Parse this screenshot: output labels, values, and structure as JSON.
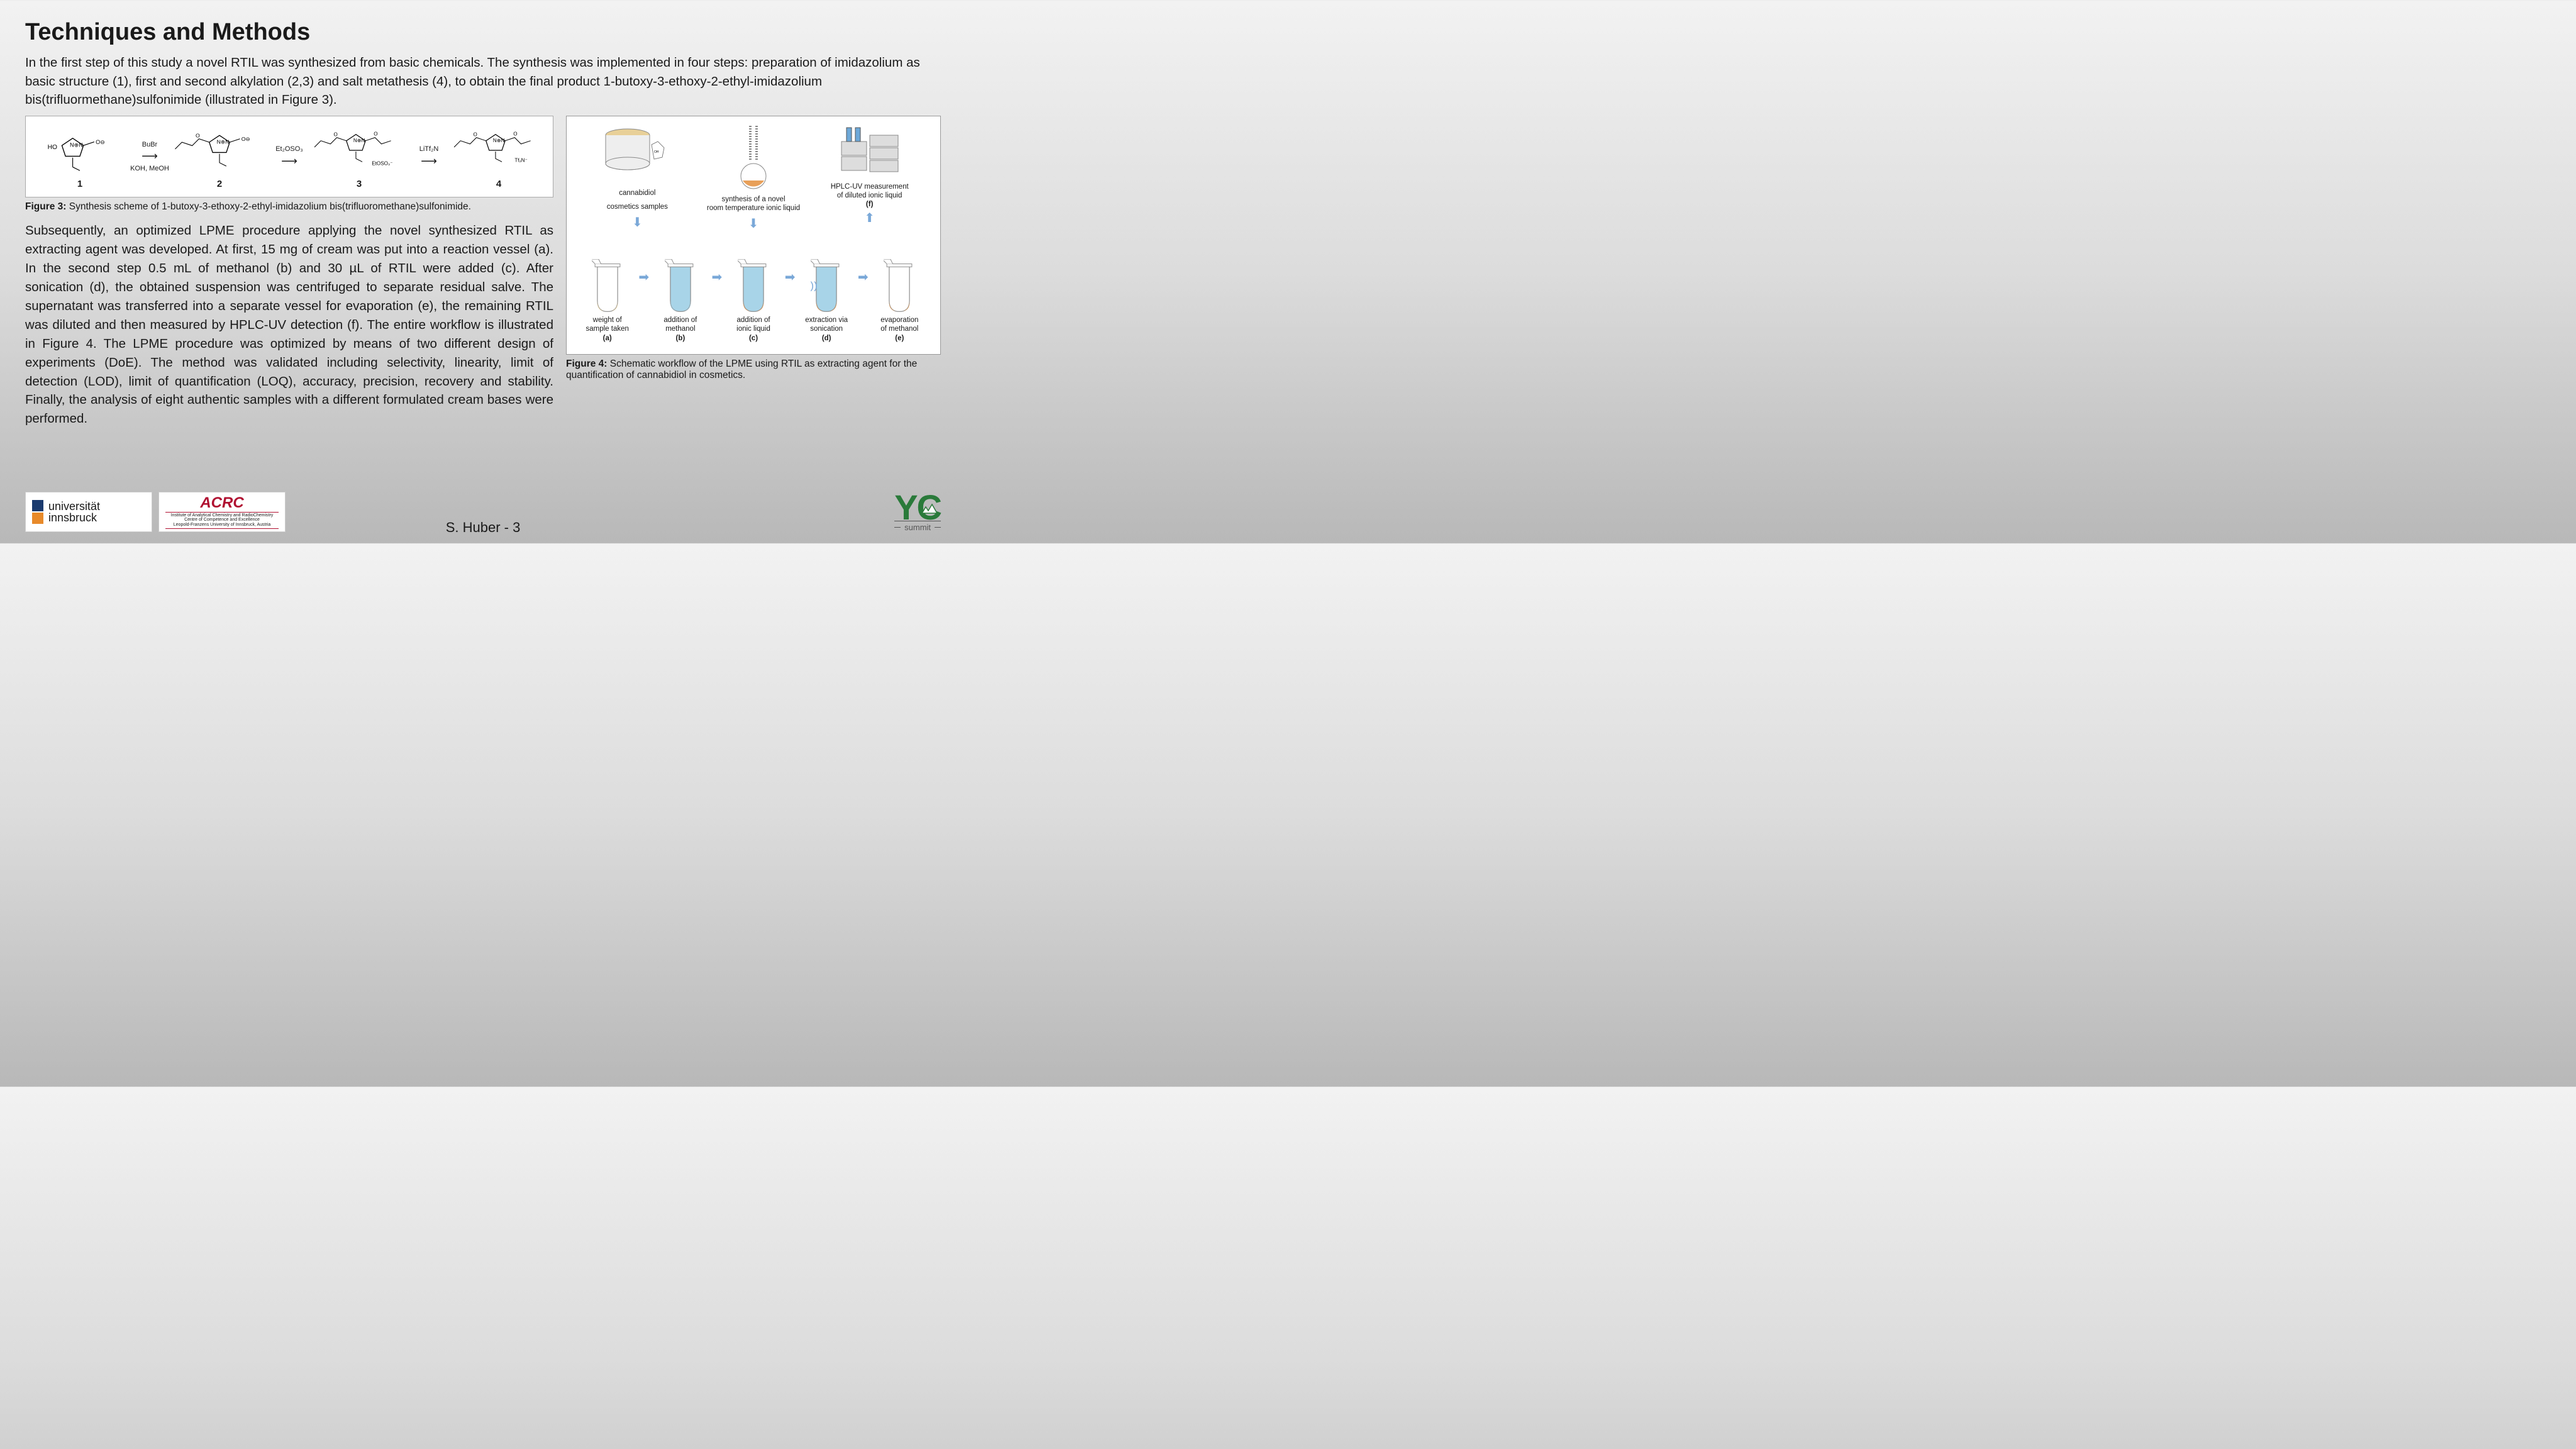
{
  "title": "Techniques and Methods",
  "intro": "In the first step of this study a novel RTIL was synthesized from basic chemicals. The synthesis was implemented in four steps: preparation of imidazolium as basic structure (1), first and second alkylation (2,3) and salt metathesis (4), to obtain the final product 1-butoxy-3-ethoxy-2-ethyl-imidazolium bis(trifluormethane)sulfonimide (illustrated in Figure 3).",
  "scheme": {
    "mol_labels": [
      "1",
      "2",
      "3",
      "4"
    ],
    "reactions": [
      {
        "top": "BuBr",
        "bottom": "KOH, MeOH"
      },
      {
        "top": "Et₂OSO₃",
        "bottom": ""
      },
      {
        "top": "LiTf₂N",
        "bottom": ""
      }
    ],
    "mol1_left": "HO",
    "mol3_anion": "EtOSO₃⁻",
    "mol4_anion": "Tf₂N⁻"
  },
  "fig3_bold": "Figure 3:",
  "fig3_text": " Synthesis scheme of 1-butoxy-3-ethoxy-2-ethyl-imidazolium bis(trifluoromethane)sulfonimide.",
  "body": "Subsequently, an optimized LPME procedure applying the novel synthesized RTIL as extracting agent was developed. At first, 15 mg of cream was put into a reaction vessel (a). In the second step 0.5 mL of methanol (b) and 30 µL of RTIL were added (c). After sonication (d), the obtained suspension was centrifuged to separate residual salve. The supernatant was transferred into a separate vessel for evaporation (e), the remaining RTIL was diluted and then measured by HPLC-UV detection (f). The entire workflow is illustrated in Figure 4. The LPME procedure was optimized by means of two different design of experiments (DoE). The method was validated including selectivity, linearity, limit of detection (LOD), limit of quantification (LOQ), accuracy, precision, recovery and stability. Finally, the analysis of eight authentic samples with a different formulated cream bases were performed.",
  "workflow": {
    "top_items": [
      {
        "label": "cannabidiol",
        "sublabel": "cosmetics samples"
      },
      {
        "label": "synthesis of a novel",
        "sublabel": "room temperature ionic liquid"
      },
      {
        "label": "HPLC-UV measurement",
        "sublabel": "of diluted ionic liquid",
        "letter": "(f)"
      }
    ],
    "tubes": [
      {
        "label": "weight of",
        "sub": "sample taken",
        "letter": "(a)",
        "fill": "#ffffff",
        "bottom": "#e8d098"
      },
      {
        "label": "addition of",
        "sub": "methanol",
        "letter": "(b)",
        "fill": "#a8d4e8",
        "bottom": "#a8d4e8"
      },
      {
        "label": "addition of",
        "sub": "ionic liquid",
        "letter": "(c)",
        "fill": "#a8d4e8",
        "bottom": "#e8a05a"
      },
      {
        "label": "extraction via",
        "sub": "sonication",
        "letter": "(d)",
        "fill": "#a8d4e8",
        "bottom": "#e8a05a"
      },
      {
        "label": "evaporation",
        "sub": "of methanol",
        "letter": "(e)",
        "fill": "#ffffff",
        "bottom": "#e8a05a"
      }
    ]
  },
  "fig4_bold": "Figure 4:",
  "fig4_text": " Schematic workflow of the LPME using RTIL as extracting agent for the quantification of cannabidiol in cosmetics.",
  "logos": {
    "uibk_line1": "universität",
    "uibk_line2": "innsbruck",
    "uibk_blue": "#1a3a6e",
    "uibk_orange": "#e88a2a",
    "acrc": "ACRC",
    "acrc_sub1": "Institute of Analytical Chemistry and RadioChemistry",
    "acrc_sub2": "Centre of Competence and Excellence",
    "acrc_sub3": "Leopold-Franzens University of Innsbruck, Austria",
    "yc_y": "Y",
    "yc_c": "C",
    "yc_sub": "summit"
  },
  "page_label": "S. Huber - 3",
  "colors": {
    "bg_top": "#f2f2f2",
    "bg_bottom": "#b8b8b8",
    "text": "#1a1a1a",
    "arrow_blue": "#7aa8d8",
    "yc_green": "#2a7a3a"
  }
}
